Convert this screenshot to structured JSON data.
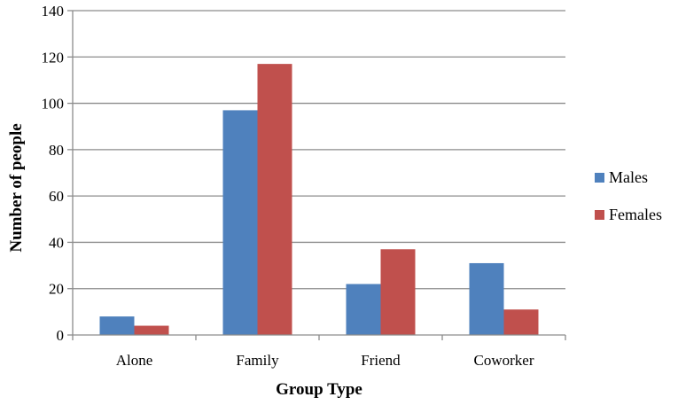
{
  "chart_data": {
    "type": "bar",
    "categories": [
      "Alone",
      "Family",
      "Friend",
      "Coworker"
    ],
    "series": [
      {
        "name": "Males",
        "values": [
          8,
          97,
          22,
          31
        ],
        "color": "#4f81bd"
      },
      {
        "name": "Females",
        "values": [
          4,
          117,
          37,
          11
        ],
        "color": "#c0504d"
      }
    ],
    "title": "",
    "xlabel": "Group Type",
    "ylabel": "Number of  people",
    "ylim": [
      0,
      140
    ],
    "yticks": [
      0,
      20,
      40,
      60,
      80,
      100,
      120,
      140
    ],
    "grid": true,
    "legend": "right",
    "gridline_color": "#8c8c8c",
    "axis_color": "#8c8c8c"
  }
}
